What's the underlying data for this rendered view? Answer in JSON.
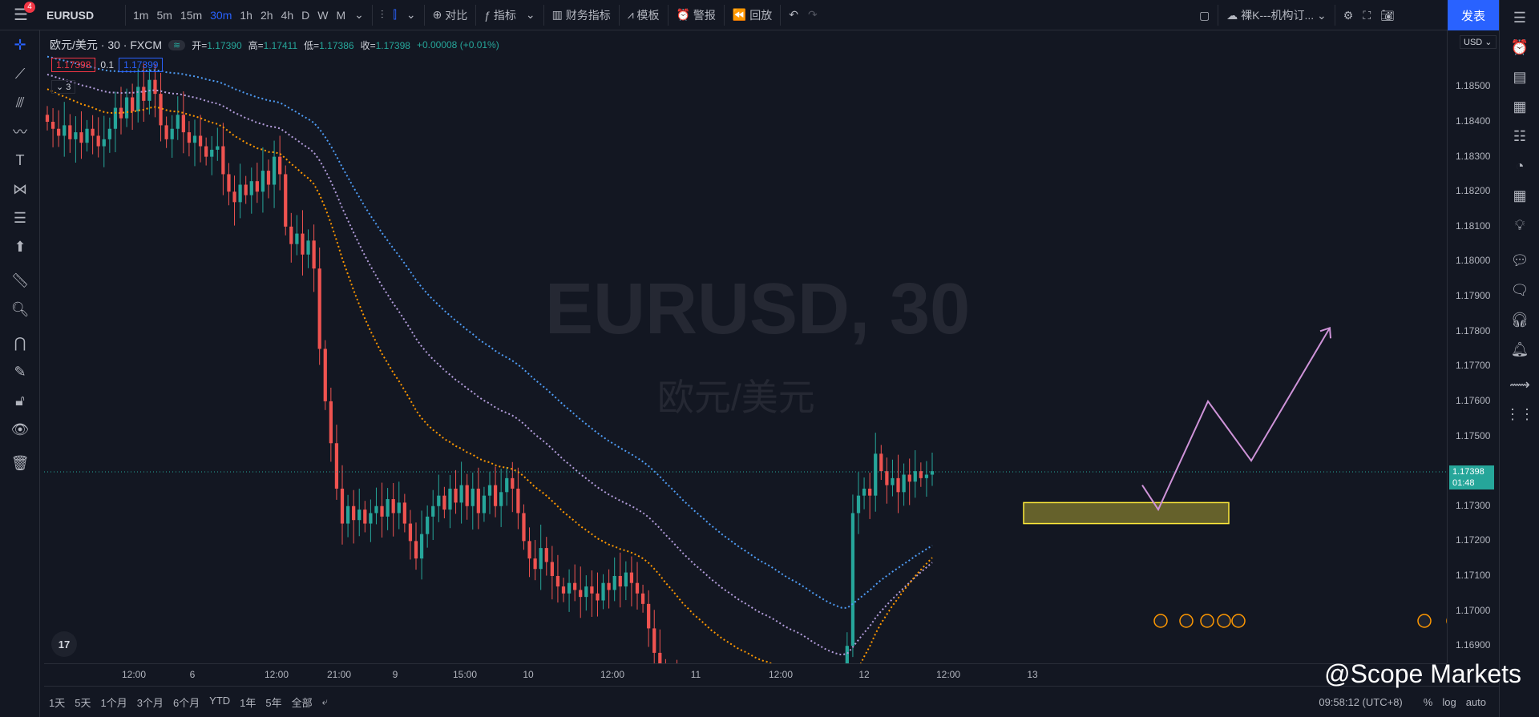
{
  "toolbar": {
    "menu_badge": "4",
    "symbol": "EURUSD",
    "intervals": [
      "1m",
      "5m",
      "15m",
      "30m",
      "1h",
      "2h",
      "4h",
      "D",
      "W",
      "M"
    ],
    "active_interval": "30m",
    "compare_label": "对比",
    "indicators_label": "指标",
    "financials_label": "财务指标",
    "templates_label": "模板",
    "alert_label": "警报",
    "replay_label": "回放",
    "layout_name": "裸K---机构订...",
    "publish_label": "发表"
  },
  "legend": {
    "title": "欧元/美元 · 30 · FXCM",
    "live_badge": "≋",
    "open_key": "开=",
    "open": "1.17390",
    "high_key": "高=",
    "high": "1.17411",
    "low_key": "低=",
    "low": "1.17386",
    "close_key": "收=",
    "close": "1.17398",
    "change": "+0.00008 (+0.01%)",
    "bid": "1.17398",
    "spread": "0.1",
    "ask": "1.17399",
    "collapsed_count": "3"
  },
  "watermark": {
    "symbol": "EURUSD, 30",
    "name": "欧元/美元"
  },
  "price_axis": {
    "currency": "USD",
    "labels": [
      "1.18500",
      "1.18400",
      "1.18300",
      "1.18200",
      "1.18100",
      "1.18000",
      "1.17900",
      "1.17800",
      "1.17700",
      "1.17600",
      "1.17500",
      "1.17300",
      "1.17200",
      "1.17100",
      "1.17000",
      "1.16900"
    ],
    "last_price": "1.17398",
    "countdown": "01:48"
  },
  "time_axis": {
    "labels": [
      "12:00",
      "6",
      "12:00",
      "21:00",
      "9",
      "15:00",
      "10",
      "12:00",
      "11",
      "12:00",
      "12",
      "12:00",
      "13"
    ]
  },
  "bottom": {
    "ranges": [
      "1天",
      "5天",
      "1个月",
      "3个月",
      "6个月",
      "YTD",
      "1年",
      "5年",
      "全部"
    ],
    "clock": "09:58:12 (UTC+8)",
    "percent": "%",
    "log": "log",
    "auto": "auto"
  },
  "branding": {
    "watermark_text": "@Scope Markets",
    "tv_logo": "17"
  },
  "colors": {
    "bg": "#131722",
    "up": "#26a69a",
    "down": "#ef5350",
    "ma_blue": "#4e9cf5",
    "ma_purple": "#b39ddb",
    "ma_orange": "#ff9800",
    "zone": "#ffeb3b",
    "projection": "#ce93d8"
  },
  "chart_data": {
    "type": "candlestick",
    "ylim": [
      1.1685,
      1.1865
    ],
    "candles_close": [
      1.184,
      1.1838,
      1.1836,
      1.1839,
      1.1835,
      1.1837,
      1.1834,
      1.1838,
      1.1836,
      1.1833,
      1.1835,
      1.1838,
      1.1844,
      1.1841,
      1.1847,
      1.1843,
      1.185,
      1.1846,
      1.1852,
      1.1848,
      1.1839,
      1.1835,
      1.1838,
      1.1842,
      1.1837,
      1.1834,
      1.1836,
      1.1833,
      1.183,
      1.1832,
      1.1833,
      1.1825,
      1.182,
      1.1817,
      1.1822,
      1.1819,
      1.1823,
      1.182,
      1.1826,
      1.1822,
      1.183,
      1.1825,
      1.181,
      1.1805,
      1.1808,
      1.1802,
      1.1806,
      1.1798,
      1.1775,
      1.176,
      1.1748,
      1.1735,
      1.1725,
      1.173,
      1.1726,
      1.1729,
      1.1725,
      1.1728,
      1.173,
      1.1727,
      1.1732,
      1.1728,
      1.1731,
      1.1725,
      1.172,
      1.1715,
      1.1722,
      1.1727,
      1.173,
      1.1733,
      1.1729,
      1.1735,
      1.1731,
      1.1736,
      1.173,
      1.1735,
      1.1728,
      1.1733,
      1.1736,
      1.173,
      1.1734,
      1.1738,
      1.1735,
      1.1728,
      1.172,
      1.1715,
      1.1712,
      1.1718,
      1.1714,
      1.171,
      1.1707,
      1.1705,
      1.1708,
      1.1706,
      1.1704,
      1.1707,
      1.1705,
      1.1703,
      1.1708,
      1.1706,
      1.171,
      1.1707,
      1.1711,
      1.1708,
      1.1705,
      1.1702,
      1.1695,
      1.1688,
      1.1683,
      1.1677,
      1.168,
      1.1676,
      1.1673,
      1.1677,
      1.1674,
      1.1678,
      1.1675,
      1.1672,
      1.1676,
      1.1673,
      1.1677,
      1.1675,
      1.1674,
      1.1678,
      1.1675,
      1.1673,
      1.1676,
      1.1679,
      1.1674,
      1.1671,
      1.1668,
      1.1672,
      1.1675,
      1.167,
      1.1666,
      1.1662,
      1.1667,
      1.1664,
      1.1668,
      1.1671,
      1.1674,
      1.169,
      1.1728,
      1.1733,
      1.1735,
      1.1733,
      1.1745,
      1.174,
      1.1736,
      1.1738,
      1.1734,
      1.1739,
      1.1737,
      1.174,
      1.1738,
      1.1739,
      1.174
    ],
    "ma_levels": [
      1.1743,
      1.1733,
      1.1726
    ],
    "zone": {
      "top": 1.1731,
      "bottom": 1.1725
    },
    "projection": [
      1.1736,
      1.1729,
      1.176,
      1.1743,
      1.1781
    ]
  }
}
